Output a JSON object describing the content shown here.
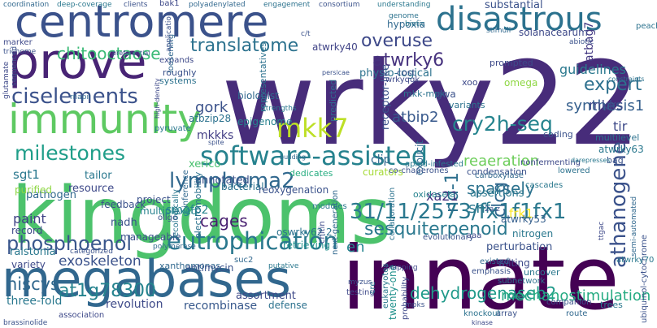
{
  "cloud": {
    "words": [
      {
        "text": "wrky22",
        "color": "#472c7a"
      },
      {
        "text": "innate",
        "color": "#440154"
      },
      {
        "text": "kingdoms",
        "color": "#4cc26c"
      },
      {
        "text": "megabases",
        "color": "#31678e"
      },
      {
        "text": "centromere",
        "color": "#3b528b"
      },
      {
        "text": "prove",
        "color": "#482475"
      },
      {
        "text": "immunity",
        "color": "#5ec962"
      },
      {
        "text": "disastrous",
        "color": "#2c728e"
      },
      {
        "text": "software-assisted",
        "color": "#26828e"
      },
      {
        "text": "mkk7",
        "color": "#bddf26"
      },
      {
        "text": "31/11/2573/fx1f1fx1",
        "color": "#2a788e"
      },
      {
        "text": "eutrophication",
        "color": "#2a788e"
      },
      {
        "text": "phosphoenol",
        "color": "#39568c"
      },
      {
        "text": "lymphoma2",
        "color": "#31688e"
      },
      {
        "text": "ciselements",
        "color": "#3b528b"
      },
      {
        "text": "milestones",
        "color": "#1f9e89"
      },
      {
        "text": "cry2h-seq",
        "color": "#25848e"
      },
      {
        "text": "translatome",
        "color": "#2c728e"
      },
      {
        "text": "sesquiterpenoid",
        "color": "#2a788e"
      },
      {
        "text": "athanogene",
        "color": "#3b528b"
      },
      {
        "text": "overuse",
        "color": "#3e4989"
      },
      {
        "text": "atwrky6",
        "color": "#46327e"
      },
      {
        "text": "expert",
        "color": "#2d708e"
      },
      {
        "text": "chitooctaose",
        "color": "#3aba76"
      },
      {
        "text": "dehydrogenaseb2",
        "color": "#1f9a8a"
      },
      {
        "text": "mechanostimulation",
        "color": "#25ab82"
      },
      {
        "text": "hiscys",
        "color": "#31688e"
      },
      {
        "text": "at1g78300",
        "color": "#25838e"
      },
      {
        "text": "synthesis1",
        "color": "#355f8d"
      },
      {
        "text": "cages",
        "color": "#481f70"
      },
      {
        "text": "exoskeleton",
        "color": "#3b528b"
      },
      {
        "text": "sparsely",
        "color": "#2c728e"
      },
      {
        "text": "snf",
        "color": "#2a788e"
      },
      {
        "text": "nd-1",
        "color": "#2d708e"
      },
      {
        "text": "clcg",
        "color": "#31688e"
      },
      {
        "text": "reaeration",
        "color": "#6ccd5a"
      },
      {
        "text": "atbip2",
        "color": "#38598c"
      },
      {
        "text": "mkks",
        "color": "#3e4a89"
      },
      {
        "text": "mkkks",
        "color": "#433e85"
      },
      {
        "text": "gork",
        "color": "#3b528b"
      },
      {
        "text": "paint",
        "color": "#414487"
      },
      {
        "text": "sgt1",
        "color": "#2a788e"
      },
      {
        "text": "three-fold",
        "color": "#2a788e"
      },
      {
        "text": "revolution",
        "color": "#3e4a89"
      },
      {
        "text": "recombinase",
        "color": "#38598c"
      },
      {
        "text": "defense",
        "color": "#2c728e"
      },
      {
        "text": "twenty-one",
        "color": "#21918c"
      },
      {
        "text": "en",
        "color": "#25848e"
      },
      {
        "text": "smgfp2",
        "color": "#25858e"
      },
      {
        "text": "xa21",
        "color": "#46327e"
      },
      {
        "text": "frk1",
        "color": "#fde725"
      },
      {
        "text": "tir",
        "color": "#3e4a89"
      },
      {
        "text": "atwrky63",
        "color": "#2a788e"
      },
      {
        "text": "guidelines",
        "color": "#2a788e"
      },
      {
        "text": "atbag7",
        "color": "#443a83"
      },
      {
        "text": "substantial",
        "color": "#3b528b"
      },
      {
        "text": "hypoxia",
        "color": "#31688e"
      },
      {
        "text": "solanacearum",
        "color": "#3e4989"
      },
      {
        "text": "atwrky40",
        "color": "#414487"
      },
      {
        "text": "physio-logical",
        "color": "#2c728e"
      },
      {
        "text": "receptor-like",
        "color": "#3b528b"
      },
      {
        "text": "annotated",
        "color": "#3b528b"
      },
      {
        "text": "clip",
        "color": "#31688e"
      },
      {
        "text": "curators",
        "color": "#a5db36"
      },
      {
        "text": "dedicates",
        "color": "#27ad81"
      },
      {
        "text": "pathogen",
        "color": "#31688e"
      },
      {
        "text": "resource",
        "color": "#3e4989"
      },
      {
        "text": "project",
        "color": "#3b528b"
      },
      {
        "text": "bacterial",
        "color": "#2c728e"
      },
      {
        "text": "multiplexed",
        "color": "#26828e"
      },
      {
        "text": "reoxygenation",
        "color": "#3b528b"
      },
      {
        "text": "assortment",
        "color": "#3e4a89"
      },
      {
        "text": "oswrky62.2",
        "color": "#2c728e"
      },
      {
        "text": "retrieving",
        "color": "#21918c"
      },
      {
        "text": "perturbation",
        "color": "#3b528b"
      },
      {
        "text": "assertions",
        "color": "#2a788e"
      },
      {
        "text": "atwrky53",
        "color": "#355f8d"
      },
      {
        "text": "nitrogen",
        "color": "#2a788e"
      },
      {
        "text": "wilting",
        "color": "#3e4989"
      },
      {
        "text": "uncover",
        "color": "#2a788e"
      },
      {
        "text": "ralstonia",
        "color": "#2a788e"
      },
      {
        "text": "nadh",
        "color": "#3b528b"
      },
      {
        "text": "record",
        "color": "#3e4989"
      },
      {
        "text": "tailor",
        "color": "#2a788e"
      },
      {
        "text": "xerico",
        "color": "#48c16e"
      },
      {
        "text": "atbzip28",
        "color": "#2c728e"
      },
      {
        "text": "epigenome",
        "color": "#26828e"
      },
      {
        "text": "biologist",
        "color": "#31688e"
      },
      {
        "text": "mkk-mpk",
        "color": "#2c728e"
      },
      {
        "text": "gwa",
        "color": "#3b528b"
      },
      {
        "text": "cost",
        "color": "#3b528b"
      },
      {
        "text": "variants",
        "color": "#2c728e"
      },
      {
        "text": "omega",
        "color": "#8fd744"
      },
      {
        "text": "prompted",
        "color": "#3e4a89"
      },
      {
        "text": "xoo",
        "color": "#3e4989"
      },
      {
        "text": "coding",
        "color": "#3b528b"
      },
      {
        "text": "multilevel",
        "color": "#2c728e"
      },
      {
        "text": "bag",
        "color": "#3b528b"
      },
      {
        "text": "explicit",
        "color": "#31688e"
      },
      {
        "text": "cascades",
        "color": "#2a788e"
      },
      {
        "text": "condensation",
        "color": "#3b528b"
      },
      {
        "text": "nonfermenting",
        "color": "#3e4a89"
      },
      {
        "text": "oxidasela",
        "color": "#26828e"
      },
      {
        "text": "carboxylase",
        "color": "#31688e"
      },
      {
        "text": "pyruvate",
        "color": "#2a788e"
      },
      {
        "text": "roughly",
        "color": "#3b528b"
      },
      {
        "text": "systems",
        "color": "#2c728e"
      },
      {
        "text": "expands",
        "color": "#3e4989"
      },
      {
        "text": "loosening",
        "color": "#31688e"
      },
      {
        "text": "sequenced",
        "color": "#3b528b"
      },
      {
        "text": "trichome",
        "color": "#3b528b"
      },
      {
        "text": "marker",
        "color": "#3e4989"
      },
      {
        "text": "genome",
        "color": "#2c728e"
      },
      {
        "text": "biotic",
        "color": "#2a788e"
      },
      {
        "text": "stimuli",
        "color": "#31688e"
      },
      {
        "text": "abiotic",
        "color": "#3b528b"
      },
      {
        "text": "peach",
        "color": "#2c728e"
      },
      {
        "text": "wrkyqqk",
        "color": "#3e4989"
      },
      {
        "text": "strengths",
        "color": "#2a788e"
      },
      {
        "text": "predicted",
        "color": "#31688e"
      },
      {
        "text": "representatives",
        "color": "#2c728e"
      },
      {
        "text": "feedback",
        "color": "#3b528b"
      },
      {
        "text": "purified",
        "color": "#8fd744"
      },
      {
        "text": "manageable",
        "color": "#3b528b"
      },
      {
        "text": "variety",
        "color": "#3e4989"
      },
      {
        "text": "xanthomonas",
        "color": "#31688e"
      },
      {
        "text": "antimycin",
        "color": "#3b528b"
      },
      {
        "text": "electromobility",
        "color": "#2c728e"
      },
      {
        "text": "inference",
        "color": "#31688e"
      },
      {
        "text": "ecologically",
        "color": "#2a788e"
      },
      {
        "text": "oligo",
        "color": "#3b528b"
      },
      {
        "text": "chitin",
        "color": "#3e4989"
      },
      {
        "text": "next-generation",
        "color": "#31688e"
      },
      {
        "text": "collaboration",
        "color": "#2c728e"
      },
      {
        "text": "evolutionary",
        "color": "#3b528b"
      },
      {
        "text": "modules",
        "color": "#2a788e"
      },
      {
        "text": "aaa",
        "color": "#3e4989"
      },
      {
        "text": "subnetwork",
        "color": "#2c728e"
      },
      {
        "text": "ubiquinol-cytochrome",
        "color": "#3b528b"
      },
      {
        "text": "atwrky70",
        "color": "#2a788e"
      },
      {
        "text": "semi-automated",
        "color": "#31688e"
      },
      {
        "text": "emphasis",
        "color": "#3b528b"
      },
      {
        "text": "existed",
        "color": "#31688e"
      },
      {
        "text": "eukaryotes",
        "color": "#2a788e"
      },
      {
        "text": "probability",
        "color": "#3e4989"
      },
      {
        "text": "array",
        "color": "#3b528b"
      },
      {
        "text": "knockout",
        "color": "#2c728e"
      },
      {
        "text": "route",
        "color": "#31688e"
      },
      {
        "text": "companion",
        "color": "#3b528b"
      },
      {
        "text": "trees",
        "color": "#2a788e"
      },
      {
        "text": "testing",
        "color": "#3e4989"
      },
      {
        "text": "cre",
        "color": "#2c728e"
      },
      {
        "text": "myzus",
        "color": "#3b528b"
      },
      {
        "text": "suc2",
        "color": "#31688e"
      },
      {
        "text": "association",
        "color": "#3e4989"
      },
      {
        "text": "brassinolide",
        "color": "#3b528b"
      },
      {
        "text": "deep-coverage",
        "color": "#2a788e"
      },
      {
        "text": "clients",
        "color": "#3b528b"
      },
      {
        "text": "bak1",
        "color": "#3e4989"
      },
      {
        "text": "polyadenylated",
        "color": "#31688e"
      },
      {
        "text": "engagement",
        "color": "#2c728e"
      },
      {
        "text": "consortium",
        "color": "#3b528b"
      },
      {
        "text": "understanding",
        "color": "#2a788e"
      },
      {
        "text": "application",
        "color": "#3b528b"
      },
      {
        "text": "coordination",
        "color": "#31688e"
      },
      {
        "text": "c/t",
        "color": "#3b528b"
      },
      {
        "text": "glutamate",
        "color": "#3e4989"
      },
      {
        "text": "rnapii",
        "color": "#31688e"
      },
      {
        "text": "aphid-infested",
        "color": "#2a788e"
      },
      {
        "text": "co-chaperones",
        "color": "#3b528b"
      },
      {
        "text": "lowered",
        "color": "#2c728e"
      },
      {
        "text": "2a.z",
        "color": "#3b528b"
      },
      {
        "text": "ttgac",
        "color": "#3e4989"
      },
      {
        "text": "polymerase",
        "color": "#31688e"
      },
      {
        "text": "categorized",
        "color": "#3b528b"
      },
      {
        "text": "putative",
        "color": "#2a788e"
      },
      {
        "text": "mapping",
        "color": "#3e4989"
      },
      {
        "text": "mpks",
        "color": "#3b528b"
      },
      {
        "text": "preferential",
        "color": "#3b528b"
      },
      {
        "text": "constraints",
        "color": "#2c728e"
      },
      {
        "text": "persicae",
        "color": "#3b528b"
      },
      {
        "text": "high-density",
        "color": "#3e4989"
      },
      {
        "text": "building",
        "color": "#31688e"
      },
      {
        "text": "darepresses",
        "color": "#2a788e"
      },
      {
        "text": "spite",
        "color": "#3b528b"
      },
      {
        "text": "kinase",
        "color": "#3e4989"
      }
    ]
  }
}
